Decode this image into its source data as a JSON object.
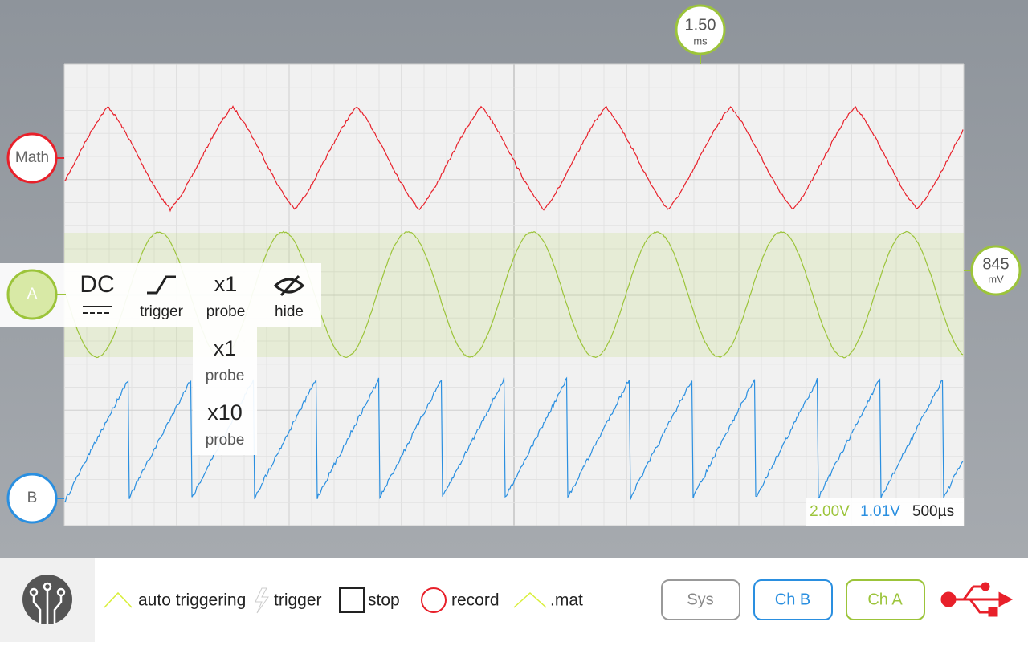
{
  "cursors": {
    "time": {
      "value": "1.50",
      "unit": "ms"
    },
    "offset": {
      "value": "845",
      "unit": "mV"
    }
  },
  "channels": {
    "math": "Math",
    "a": "A",
    "b": "B"
  },
  "channel_menu": {
    "coupling": "DC",
    "trigger": "trigger",
    "probe": {
      "value": "x1",
      "label": "probe"
    },
    "hide": "hide"
  },
  "probe_options": [
    {
      "value": "x1",
      "label": "probe"
    },
    {
      "value": "x10",
      "label": "probe"
    }
  ],
  "scale": {
    "a": "2.00V",
    "b": "1.01V",
    "time": "500µs"
  },
  "toolbar": {
    "items": [
      "auto triggering",
      "trigger",
      "stop",
      "record",
      ".mat"
    ],
    "buttons": [
      "Sys",
      "Ch B",
      "Ch A"
    ]
  }
}
